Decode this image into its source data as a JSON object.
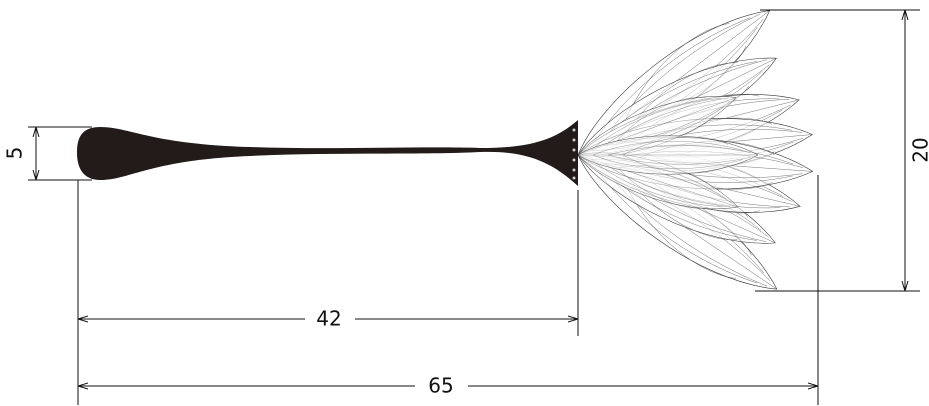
{
  "dimensions": {
    "head_height": "5",
    "handle_length": "42",
    "total_length": "65",
    "feather_height": "20"
  }
}
